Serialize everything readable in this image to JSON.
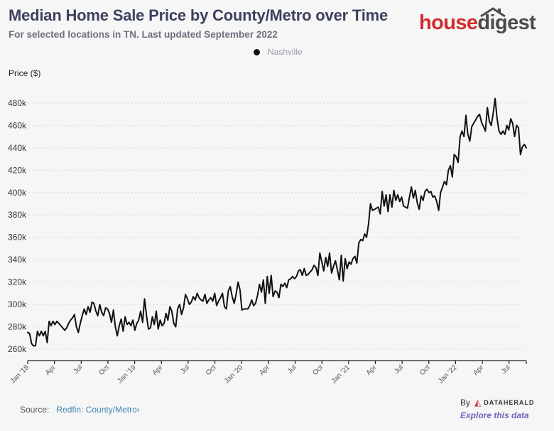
{
  "header": {
    "title": "Median Home Sale Price by County/Metro over Time",
    "subtitle": "For selected locations in TN. Last updated September 2022"
  },
  "brand": {
    "house": "house",
    "digest": "digest"
  },
  "legend": [
    {
      "label": "Nashville",
      "color": "#111111"
    }
  ],
  "footer": {
    "source_label": "Source:",
    "source_link": "Redfin: County/Metro",
    "source_chevron": "›",
    "by_label": "By",
    "by_brand": "DATAHERALD",
    "explore_link": "Explore this data"
  },
  "chart_data": {
    "type": "line",
    "title": "Median Home Sale Price by County/Metro over Time",
    "subtitle": "For selected locations in TN. Last updated September 2022",
    "ylabel": "Price ($)",
    "xlabel": "",
    "ylim": [
      255,
      485
    ],
    "y_ticks": [
      260,
      280,
      300,
      320,
      340,
      360,
      380,
      400,
      420,
      440,
      460,
      480
    ],
    "y_tick_labels": [
      "260k",
      "280k",
      "300k",
      "320k",
      "340k",
      "360k",
      "380k",
      "400k",
      "420k",
      "440k",
      "460k",
      "480k"
    ],
    "x_ticks": [
      "Jan '18",
      "Apr",
      "Jul",
      "Oct",
      "Jan '19",
      "Apr",
      "Jul",
      "Oct",
      "Jan '20",
      "Apr",
      "Jul",
      "Oct",
      "Jan '21",
      "Apr",
      "Jul",
      "Oct",
      "Jan '22",
      "Apr",
      "Jul"
    ],
    "x_range_quarters": [
      0,
      18.65
    ],
    "grid": true,
    "legend_position": "top-center",
    "series": [
      {
        "name": "Nashville",
        "color": "#111111",
        "unit": "thousand USD, weekly",
        "values": [
          275,
          274,
          265,
          263,
          263,
          276,
          272,
          276,
          272,
          276,
          266,
          285,
          281,
          285,
          282,
          285,
          283,
          281,
          279,
          277,
          279,
          283,
          286,
          288,
          291,
          280,
          275,
          283,
          290,
          296,
          291,
          298,
          293,
          302,
          301,
          294,
          290,
          300,
          293,
          290,
          297,
          296,
          292,
          284,
          295,
          280,
          272,
          281,
          287,
          276,
          289,
          282,
          284,
          281,
          286,
          277,
          283,
          286,
          294,
          284,
          305,
          290,
          278,
          279,
          289,
          282,
          294,
          278,
          286,
          281,
          283,
          292,
          286,
          298,
          294,
          283,
          280,
          296,
          300,
          291,
          297,
          309,
          305,
          300,
          302,
          307,
          304,
          310,
          306,
          304,
          303,
          309,
          301,
          304,
          306,
          303,
          310,
          299,
          303,
          306,
          310,
          298,
          296,
          312,
          316,
          307,
          301,
          309,
          320,
          313,
          295,
          296,
          296,
          296,
          299,
          304,
          299,
          301,
          308,
          318,
          311,
          322,
          301,
          325,
          310,
          326,
          307,
          312,
          311,
          306,
          318,
          316,
          319,
          315,
          322,
          323,
          325,
          323,
          325,
          330,
          331,
          326,
          332,
          326,
          327,
          329,
          331,
          335,
          333,
          326,
          346,
          338,
          330,
          342,
          334,
          346,
          328,
          334,
          339,
          331,
          322,
          344,
          321,
          341,
          332,
          338,
          336,
          341,
          343,
          337,
          355,
          358,
          357,
          363,
          360,
          372,
          390,
          384,
          385,
          386,
          387,
          381,
          401,
          388,
          398,
          383,
          398,
          387,
          402,
          393,
          398,
          392,
          396,
          388,
          387,
          386,
          396,
          405,
          395,
          402,
          391,
          385,
          397,
          393,
          401,
          403,
          400,
          401,
          396,
          397,
          392,
          384,
          400,
          405,
          410,
          407,
          420,
          424,
          414,
          434,
          432,
          427,
          450,
          455,
          450,
          469,
          452,
          446,
          459,
          462,
          465,
          468,
          470,
          463,
          459,
          455,
          476,
          464,
          460,
          471,
          484,
          466,
          455,
          452,
          455,
          452,
          460,
          456,
          466,
          462,
          450,
          460,
          458,
          434,
          441,
          443,
          440
        ]
      }
    ]
  }
}
